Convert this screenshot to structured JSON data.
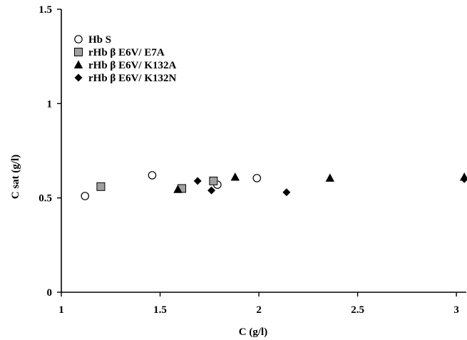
{
  "chart_data": {
    "type": "scatter",
    "xlabel": "C (g/l)",
    "ylabel": "C sat (g/l)",
    "xlim": [
      1,
      3.05
    ],
    "ylim": [
      0,
      1.5
    ],
    "xticks": [
      {
        "value": 1,
        "label": "1"
      },
      {
        "value": 1.5,
        "label": "1.5"
      },
      {
        "value": 2,
        "label": "2"
      },
      {
        "value": 2.5,
        "label": "2.5"
      },
      {
        "value": 3,
        "label": "3"
      }
    ],
    "yticks": [
      {
        "value": 0,
        "label": "0"
      },
      {
        "value": 0.5,
        "label": "0.5"
      },
      {
        "value": 1,
        "label": "1"
      },
      {
        "value": 1.5,
        "label": "1.5"
      }
    ],
    "grid": false,
    "legend_position": "top-left",
    "series": [
      {
        "name": "Hb S",
        "marker": "open-circle",
        "color": "#000000",
        "points": [
          {
            "x": 1.12,
            "y": 0.51
          },
          {
            "x": 1.46,
            "y": 0.62
          },
          {
            "x": 1.79,
            "y": 0.57
          },
          {
            "x": 1.99,
            "y": 0.605
          }
        ]
      },
      {
        "name": "rHb β E6V/ E7A",
        "marker": "shaded-square",
        "color": "#a0a0a0",
        "points": [
          {
            "x": 1.2,
            "y": 0.56
          },
          {
            "x": 1.61,
            "y": 0.55
          },
          {
            "x": 1.77,
            "y": 0.59
          }
        ]
      },
      {
        "name": "rHb β E6V/ K132A",
        "marker": "filled-triangle",
        "color": "#000000",
        "points": [
          {
            "x": 1.59,
            "y": 0.545
          },
          {
            "x": 1.88,
            "y": 0.61
          },
          {
            "x": 2.36,
            "y": 0.605
          },
          {
            "x": 3.04,
            "y": 0.61
          }
        ]
      },
      {
        "name": "rHb β E6V/ K132N",
        "marker": "filled-diamond",
        "color": "#000000",
        "points": [
          {
            "x": 1.69,
            "y": 0.59
          },
          {
            "x": 1.76,
            "y": 0.54
          },
          {
            "x": 2.14,
            "y": 0.53
          },
          {
            "x": 3.04,
            "y": 0.6
          }
        ]
      }
    ]
  }
}
